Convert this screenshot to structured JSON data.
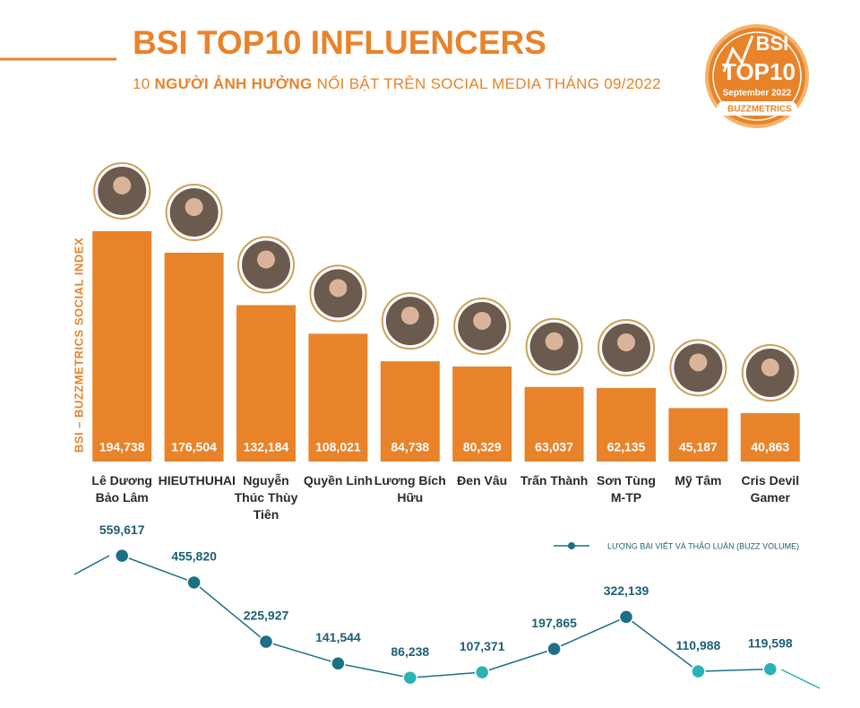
{
  "header": {
    "title": "BSI TOP10 INFLUENCERS",
    "subtitle": [
      "10",
      "NGƯỜI ẢNH HƯỞNG",
      "NỔI BẬT TRÊN SOCIAL MEDIA THÁNG 09/2022"
    ]
  },
  "logo": {
    "line1": "BSI",
    "line2": "TOP10",
    "line3": "September 2022",
    "brand": "BUZZMETRICS"
  },
  "chart_data": [
    {
      "type": "bar",
      "y_label": "BSI – BUZZMETRICS SOCIAL INDEX",
      "categories": [
        "Lê Dương Bảo Lâm",
        "HIEUTHUHAI",
        "Nguyễn Thúc Thùy Tiên",
        "Quyền Linh",
        "Lương Bích Hữu",
        "Đen Vâu",
        "Trấn Thành",
        "Sơn Tùng M-TP",
        "Mỹ Tâm",
        "Cris Devil Gamer"
      ],
      "values": [
        194738,
        176504,
        132184,
        108021,
        84738,
        80329,
        63037,
        62135,
        45187,
        40863
      ],
      "value_labels": [
        "194,738",
        "176,504",
        "132,184",
        "108,021",
        "84,738",
        "80,329",
        "63,037",
        "62,135",
        "45,187",
        "40,863"
      ],
      "color": "#e8832a",
      "ylim": [
        0,
        200000
      ]
    },
    {
      "type": "line",
      "series": [
        {
          "name": "LƯỢNG BÀI VIẾT VÀ THẢO LUẬN (BUZZ VOLUME)",
          "color": "#1d6f86",
          "values": [
            559617,
            455820,
            225927,
            141544,
            86238,
            107371,
            197865,
            322139,
            110988,
            119598
          ],
          "value_labels": [
            "559,617",
            "455,820",
            "225,927",
            "141,544",
            "86,238",
            "107,371",
            "197,865",
            "322,139",
            "110,988",
            "119,598"
          ],
          "point_colors": [
            "#1d6f86",
            "#1d6f86",
            "#1d6f86",
            "#1d6f86",
            "#2ab3b5",
            "#2ab3b5",
            "#1d6f86",
            "#1d6f86",
            "#2ab3b5",
            "#2ab3b5"
          ]
        }
      ],
      "ylim": [
        0,
        600000
      ]
    }
  ]
}
